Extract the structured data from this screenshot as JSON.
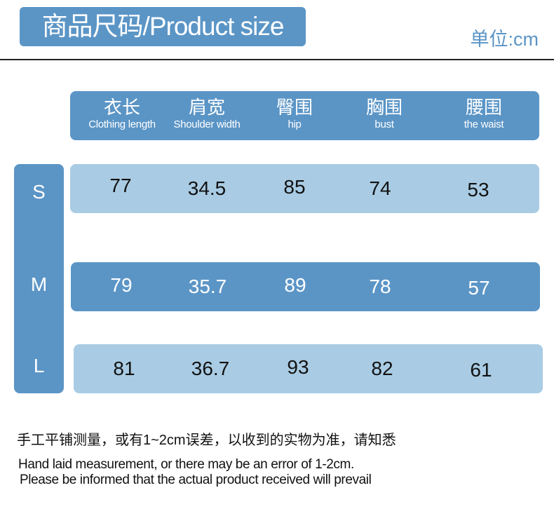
{
  "title": "商品尺码/Product size",
  "unit": "单位:cm",
  "columns": [
    {
      "zh": "衣长",
      "en": "Clothing length"
    },
    {
      "zh": "肩宽",
      "en": "Shoulder width"
    },
    {
      "zh": "臀围",
      "en": "hip"
    },
    {
      "zh": "胸围",
      "en": "bust"
    },
    {
      "zh": "腰围",
      "en": "the waist"
    }
  ],
  "rows": [
    {
      "size": "S",
      "values": [
        "77",
        "34.5",
        "85",
        "74",
        "53"
      ]
    },
    {
      "size": "M",
      "values": [
        "79",
        "35.7",
        "89",
        "78",
        "57"
      ]
    },
    {
      "size": "L",
      "values": [
        "81",
        "36.7",
        "93",
        "82",
        "61"
      ]
    }
  ],
  "note_zh": "手工平铺测量，或有1~2cm误差，以收到的实物为准，请知悉",
  "note_en": [
    "Hand laid measurement, or there may be an error of 1-2cm.",
    "Please be informed that the actual product received will prevail"
  ],
  "colors": {
    "accent": "#5b95c6",
    "light_row": "#a9cce4",
    "text": "#111111"
  }
}
